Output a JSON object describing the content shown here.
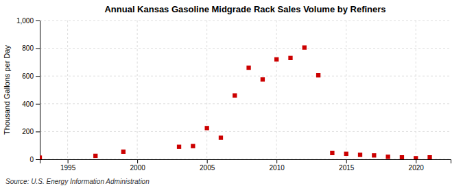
{
  "chart_data": {
    "type": "scatter",
    "title": "Annual Kansas Gasoline Midgrade Rack Sales Volume by Refiners",
    "ylabel": "Thousand Gallons per Day",
    "annotations": [
      "Source: U.S. Energy Information Administration"
    ],
    "x": [
      1993,
      1997,
      1999,
      2003,
      2004,
      2005,
      2006,
      2007,
      2008,
      2009,
      2010,
      2011,
      2012,
      2013,
      2014,
      2015,
      2016,
      2017,
      2018,
      2019,
      2020,
      2021
    ],
    "values": [
      12,
      25,
      55,
      90,
      95,
      225,
      155,
      460,
      660,
      575,
      720,
      730,
      805,
      605,
      45,
      40,
      32,
      28,
      18,
      14,
      8,
      14
    ],
    "color": "#cc0000",
    "marker": "square",
    "xlim": [
      1993,
      2022.5
    ],
    "xticks": [
      1995,
      2000,
      2005,
      2010,
      2015,
      2020
    ],
    "ylim": [
      0,
      1000
    ],
    "yticks": [
      0,
      200,
      400,
      600,
      800,
      {
        "value": 1000,
        "label": "1,000"
      }
    ],
    "grid": true
  }
}
